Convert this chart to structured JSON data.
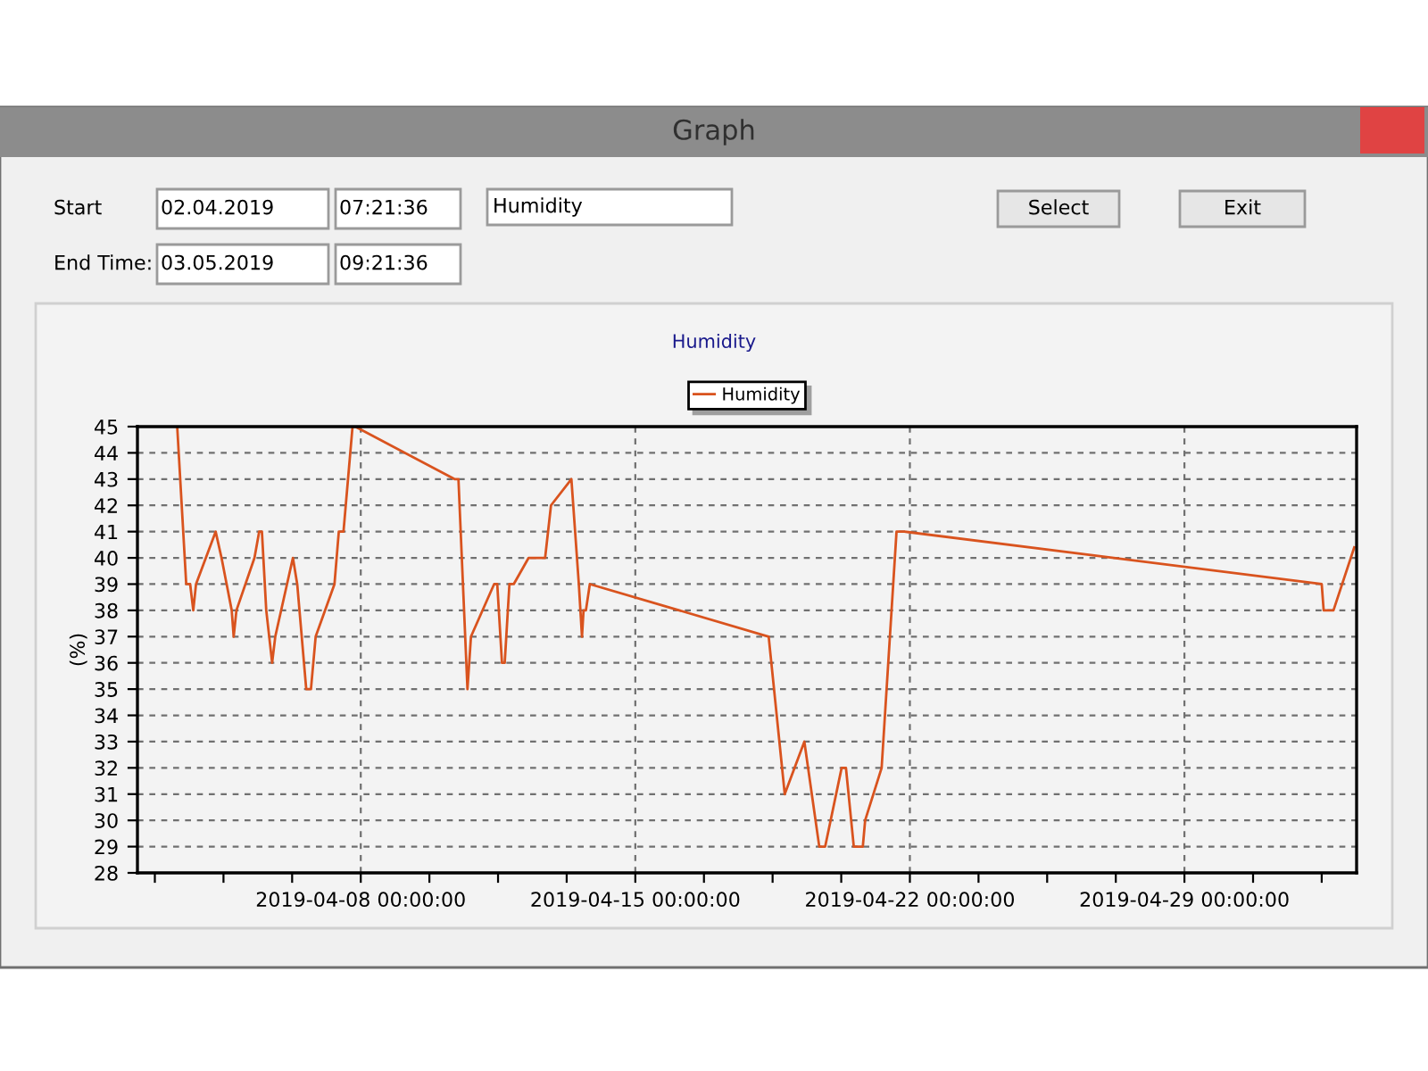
{
  "chart_data": {
    "type": "line",
    "title": "Humidity",
    "ylabel": "(%)",
    "annotations": [
      "Graph",
      "Start",
      "02.04.2019",
      "07:21:36",
      "Humidity",
      "Select",
      "Exit",
      "End Time:",
      "03.05.2019",
      "09:21:36"
    ],
    "series": [
      {
        "name": "Humidity",
        "color": "#d9531e",
        "x": [
          "2019-04-03T07:41",
          "2019-04-03T13:12",
          "2019-04-03T15:36",
          "2019-04-03T17:31",
          "2019-04-03T19:12",
          "2019-04-04T07:12",
          "2019-04-04T10:48",
          "2019-04-04T17:02",
          "2019-04-04T18:14",
          "2019-04-04T19:55",
          "2019-04-05T06:58",
          "2019-04-05T09:50",
          "2019-04-05T11:31",
          "2019-04-05T14:10",
          "2019-04-05T17:46",
          "2019-04-05T19:41",
          "2019-04-06T06:29",
          "2019-04-06T09:07",
          "2019-04-06T14:38",
          "2019-04-06T17:31",
          "2019-04-06T20:24",
          "2019-04-07T07:55",
          "2019-04-07T10:34",
          "2019-04-07T13:26",
          "2019-04-07T18:58",
          "2019-04-07T20:38",
          "2019-04-10T09:22",
          "2019-04-10T11:46",
          "2019-04-10T17:17",
          "2019-04-10T19:26",
          "2019-04-11T09:36",
          "2019-04-11T11:31",
          "2019-04-11T14:24",
          "2019-04-11T16:05",
          "2019-04-11T18:58",
          "2019-04-11T21:36",
          "2019-04-12T06:43",
          "2019-04-12T16:48",
          "2019-04-12T20:24",
          "2019-04-13T08:53",
          "2019-04-13T13:26",
          "2019-04-13T15:22",
          "2019-04-13T16:19",
          "2019-04-13T17:46",
          "2019-04-13T20:10",
          "2019-04-18T09:36",
          "2019-04-18T19:26",
          "2019-04-19T07:26",
          "2019-04-19T16:34",
          "2019-04-19T20:10",
          "2019-04-20T06:14",
          "2019-04-20T08:53",
          "2019-04-20T13:41",
          "2019-04-20T19:12",
          "2019-04-20T20:38",
          "2019-04-21T06:43",
          "2019-04-21T15:50",
          "2019-04-21T20:38",
          "2019-05-02T12:00",
          "2019-05-02T13:12",
          "2019-05-02T19:12",
          "2019-05-03T07:55"
        ],
        "values": [
          45,
          39,
          39,
          38,
          39,
          41,
          40,
          38,
          37,
          38,
          40,
          41,
          41,
          38,
          36,
          37,
          40,
          39,
          35,
          35,
          37,
          39,
          41,
          41,
          45,
          45,
          43,
          43,
          35,
          37,
          39,
          39,
          36,
          36,
          39,
          39,
          40,
          40,
          42,
          43,
          39,
          37,
          38,
          38,
          39,
          37,
          31,
          33,
          29,
          29,
          32,
          32,
          29,
          29,
          30,
          32,
          41,
          41,
          39,
          38,
          38,
          40.4
        ]
      }
    ],
    "xlim": [
      "2019-04-02T07:21",
      "2019-05-03T09:21"
    ],
    "xticks": [
      {
        "value": "2019-04-02T18:00",
        "label": null
      },
      {
        "value": "2019-04-04T12:00",
        "label": null
      },
      {
        "value": "2019-04-06T06:00",
        "label": null
      },
      {
        "value": "2019-04-08",
        "label": "2019-04-08 00:00:00"
      },
      {
        "value": "2019-04-09T18:00",
        "label": null
      },
      {
        "value": "2019-04-11T12:00",
        "label": null
      },
      {
        "value": "2019-04-13T06:00",
        "label": null
      },
      {
        "value": "2019-04-15",
        "label": "2019-04-15 00:00:00"
      },
      {
        "value": "2019-04-16T18:00",
        "label": null
      },
      {
        "value": "2019-04-18T12:00",
        "label": null
      },
      {
        "value": "2019-04-20T06:00",
        "label": null
      },
      {
        "value": "2019-04-22",
        "label": "2019-04-22 00:00:00"
      },
      {
        "value": "2019-04-23T18:00",
        "label": null
      },
      {
        "value": "2019-04-25T12:00",
        "label": null
      },
      {
        "value": "2019-04-27T06:00",
        "label": null
      },
      {
        "value": "2019-04-29",
        "label": "2019-04-29 00:00:00"
      },
      {
        "value": "2019-04-30T18:00",
        "label": null
      },
      {
        "value": "2019-05-02T12:00",
        "label": null
      }
    ],
    "ylim": [
      28,
      45
    ],
    "yticks": [
      28,
      29,
      30,
      31,
      32,
      33,
      34,
      35,
      36,
      37,
      38,
      39,
      40,
      41,
      42,
      43,
      44,
      45
    ],
    "grid": true,
    "legend": "top",
    "marker": "none",
    "line_style": "solid"
  }
}
